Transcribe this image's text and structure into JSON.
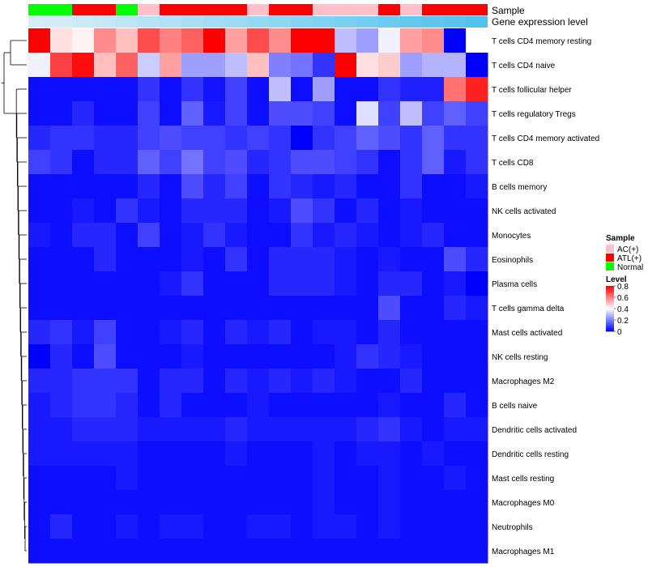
{
  "chart_data": {
    "type": "heatmap",
    "title": "",
    "annotation_rows": [
      {
        "name": "Sample",
        "label": "Sample",
        "values": [
          "Normal",
          "Normal",
          "ATL(+)",
          "ATL(+)",
          "Normal",
          "AC(+)",
          "ATL(+)",
          "ATL(+)",
          "ATL(+)",
          "ATL(+)",
          "AC(+)",
          "ATL(+)",
          "ATL(+)",
          "AC(+)",
          "AC(+)",
          "AC(+)",
          "ATL(+)",
          "AC(+)",
          "ATL(+)",
          "ATL(+)",
          "ATL(+)"
        ]
      },
      {
        "name": "Gene expression level",
        "label": "Gene expression level",
        "values": [
          0.02,
          0.05,
          0.1,
          0.15,
          0.2,
          0.25,
          0.3,
          0.35,
          0.4,
          0.45,
          0.5,
          0.55,
          0.6,
          0.65,
          0.7,
          0.75,
          0.8,
          0.85,
          0.9,
          0.95,
          1.0
        ]
      }
    ],
    "rows": [
      "T cells CD4 memory resting",
      "T cells CD4 naive",
      "T cells follicular helper",
      "T cells regulatory  Tregs",
      "T cells CD4 memory activated",
      "T cells CD8",
      "B cells memory",
      "NK cells activated",
      "Monocytes",
      "Eosinophils",
      "Plasma cells",
      "T cells gamma delta",
      "Mast cells activated",
      "NK cells resting",
      "Macrophages M2",
      "B cells naive",
      "Dendritic cells activated",
      "Dendritic cells resting",
      "Mast cells resting",
      "Macrophages M0",
      "Neutrophils",
      "Macrophages M1"
    ],
    "values": [
      [
        0.8,
        0.45,
        0.42,
        0.58,
        0.5,
        0.68,
        0.6,
        0.65,
        0.8,
        0.55,
        0.68,
        0.58,
        0.8,
        0.8,
        0.3,
        0.25,
        0.38,
        0.55,
        0.58,
        0.0,
        0.4
      ],
      [
        0.38,
        0.7,
        0.78,
        0.5,
        0.65,
        0.32,
        0.55,
        0.25,
        0.25,
        0.3,
        0.5,
        0.2,
        0.18,
        0.08,
        0.8,
        0.45,
        0.48,
        0.25,
        0.28,
        0.28,
        0.0
      ],
      [
        0.02,
        0.02,
        0.02,
        0.02,
        0.02,
        0.08,
        0.02,
        0.08,
        0.03,
        0.1,
        0.02,
        0.3,
        0.02,
        0.25,
        0.02,
        0.02,
        0.08,
        0.05,
        0.05,
        0.62,
        0.75
      ],
      [
        0.02,
        0.02,
        0.06,
        0.02,
        0.02,
        0.1,
        0.02,
        0.15,
        0.04,
        0.1,
        0.02,
        0.12,
        0.12,
        0.1,
        0.02,
        0.35,
        0.1,
        0.3,
        0.1,
        0.15,
        0.1
      ],
      [
        0.06,
        0.08,
        0.08,
        0.06,
        0.06,
        0.1,
        0.12,
        0.1,
        0.1,
        0.08,
        0.1,
        0.08,
        0.0,
        0.08,
        0.1,
        0.15,
        0.12,
        0.08,
        0.15,
        0.08,
        0.08
      ],
      [
        0.1,
        0.08,
        0.02,
        0.06,
        0.06,
        0.15,
        0.1,
        0.18,
        0.1,
        0.12,
        0.06,
        0.08,
        0.12,
        0.12,
        0.1,
        0.08,
        0.02,
        0.08,
        0.15,
        0.04,
        0.08
      ],
      [
        0.02,
        0.02,
        0.02,
        0.02,
        0.02,
        0.06,
        0.02,
        0.12,
        0.06,
        0.1,
        0.02,
        0.08,
        0.06,
        0.04,
        0.06,
        0.02,
        0.02,
        0.08,
        0.02,
        0.02,
        0.04
      ],
      [
        0.02,
        0.02,
        0.04,
        0.02,
        0.08,
        0.04,
        0.02,
        0.06,
        0.06,
        0.06,
        0.02,
        0.04,
        0.12,
        0.08,
        0.02,
        0.06,
        0.02,
        0.04,
        0.02,
        0.02,
        0.02
      ],
      [
        0.04,
        0.02,
        0.06,
        0.06,
        0.02,
        0.1,
        0.02,
        0.04,
        0.08,
        0.04,
        0.02,
        0.02,
        0.08,
        0.04,
        0.06,
        0.04,
        0.02,
        0.04,
        0.06,
        0.02,
        0.02
      ],
      [
        0.02,
        0.02,
        0.02,
        0.06,
        0.02,
        0.02,
        0.02,
        0.04,
        0.02,
        0.08,
        0.02,
        0.06,
        0.06,
        0.06,
        0.04,
        0.02,
        0.04,
        0.02,
        0.02,
        0.12,
        0.06
      ],
      [
        0.02,
        0.02,
        0.02,
        0.02,
        0.02,
        0.02,
        0.04,
        0.08,
        0.02,
        0.02,
        0.02,
        0.06,
        0.06,
        0.06,
        0.04,
        0.02,
        0.06,
        0.06,
        0.02,
        0.04,
        0.0
      ],
      [
        0.02,
        0.02,
        0.02,
        0.02,
        0.02,
        0.02,
        0.02,
        0.02,
        0.02,
        0.02,
        0.02,
        0.02,
        0.02,
        0.02,
        0.02,
        0.02,
        0.12,
        0.02,
        0.02,
        0.06,
        0.04
      ],
      [
        0.06,
        0.08,
        0.04,
        0.1,
        0.02,
        0.02,
        0.04,
        0.06,
        0.02,
        0.06,
        0.04,
        0.06,
        0.02,
        0.04,
        0.04,
        0.02,
        0.06,
        0.02,
        0.02,
        0.02,
        0.02
      ],
      [
        0.0,
        0.06,
        0.02,
        0.12,
        0.02,
        0.02,
        0.02,
        0.04,
        0.02,
        0.02,
        0.02,
        0.02,
        0.02,
        0.02,
        0.04,
        0.08,
        0.06,
        0.04,
        0.02,
        0.02,
        0.02
      ],
      [
        0.06,
        0.06,
        0.08,
        0.08,
        0.08,
        0.02,
        0.06,
        0.06,
        0.02,
        0.06,
        0.04,
        0.06,
        0.04,
        0.06,
        0.04,
        0.02,
        0.02,
        0.06,
        0.02,
        0.02,
        0.02
      ],
      [
        0.04,
        0.06,
        0.08,
        0.08,
        0.06,
        0.02,
        0.06,
        0.02,
        0.02,
        0.02,
        0.04,
        0.02,
        0.02,
        0.02,
        0.02,
        0.02,
        0.04,
        0.02,
        0.02,
        0.06,
        0.02
      ],
      [
        0.04,
        0.04,
        0.06,
        0.06,
        0.06,
        0.04,
        0.04,
        0.04,
        0.04,
        0.06,
        0.04,
        0.04,
        0.04,
        0.04,
        0.04,
        0.06,
        0.08,
        0.04,
        0.02,
        0.04,
        0.04
      ],
      [
        0.04,
        0.04,
        0.04,
        0.04,
        0.04,
        0.02,
        0.02,
        0.02,
        0.02,
        0.04,
        0.02,
        0.02,
        0.02,
        0.04,
        0.02,
        0.04,
        0.04,
        0.02,
        0.04,
        0.02,
        0.02
      ],
      [
        0.02,
        0.02,
        0.02,
        0.02,
        0.04,
        0.02,
        0.02,
        0.02,
        0.02,
        0.02,
        0.02,
        0.02,
        0.02,
        0.04,
        0.02,
        0.02,
        0.04,
        0.02,
        0.02,
        0.04,
        0.02
      ],
      [
        0.02,
        0.02,
        0.02,
        0.02,
        0.02,
        0.02,
        0.02,
        0.02,
        0.02,
        0.02,
        0.02,
        0.02,
        0.02,
        0.04,
        0.02,
        0.02,
        0.04,
        0.02,
        0.02,
        0.02,
        0.02
      ],
      [
        0.02,
        0.06,
        0.02,
        0.02,
        0.04,
        0.02,
        0.04,
        0.04,
        0.02,
        0.02,
        0.04,
        0.04,
        0.02,
        0.04,
        0.04,
        0.02,
        0.04,
        0.02,
        0.02,
        0.02,
        0.02
      ],
      [
        0.02,
        0.02,
        0.02,
        0.02,
        0.02,
        0.02,
        0.02,
        0.02,
        0.02,
        0.02,
        0.02,
        0.02,
        0.02,
        0.02,
        0.02,
        0.02,
        0.02,
        0.02,
        0.02,
        0.02,
        0.02
      ]
    ],
    "color_scale": {
      "min": 0,
      "max": 0.8,
      "low": "#0000ff",
      "mid": "#ffffff",
      "high": "#ff0000",
      "mid_value": 0.4
    },
    "legend": {
      "sample_title": "Sample",
      "sample_entries": [
        {
          "label": "AC(+)",
          "color": "#ffc0cb"
        },
        {
          "label": "ATL(+)",
          "color": "#ff0000"
        },
        {
          "label": "Normal",
          "color": "#00ff00"
        }
      ],
      "level_title": "Level",
      "level_ticks": [
        "0.8",
        "0.6",
        "0.4",
        "0.2",
        "0"
      ],
      "level_tick_values": [
        0.8,
        0.6,
        0.4,
        0.2,
        0.0
      ]
    },
    "gene_expr_colors": {
      "low": "#d9eef8",
      "high": "#4fc3f0"
    },
    "dendrogram": "left"
  }
}
